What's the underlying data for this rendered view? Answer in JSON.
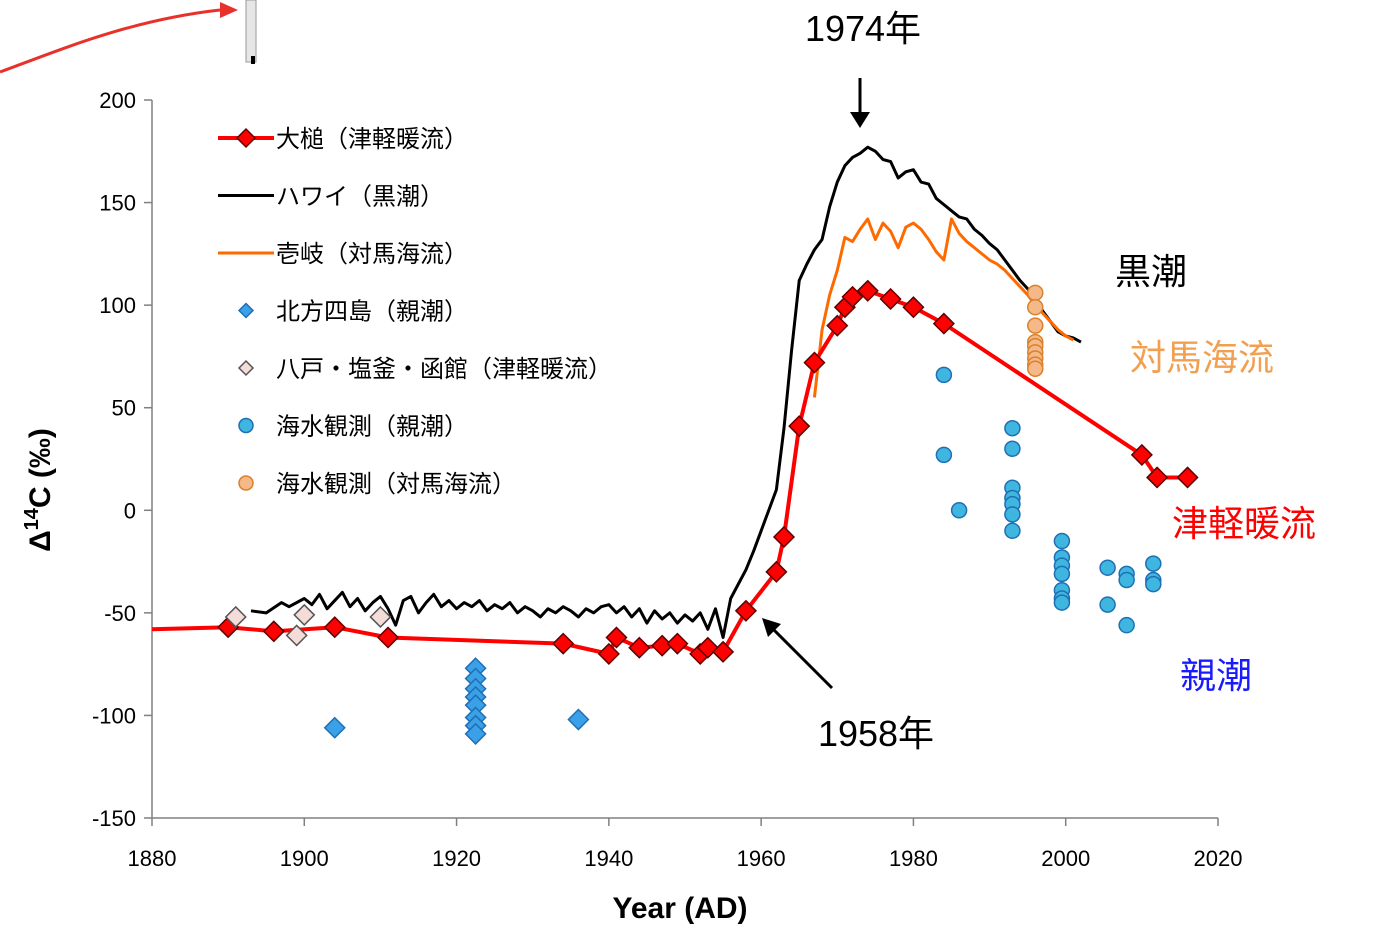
{
  "chart_data": {
    "type": "line",
    "xlabel": "Year (AD)",
    "ylabel_prefix": "Δ",
    "ylabel_sup": "14",
    "ylabel_suffix": "C (‰)",
    "xlim": [
      1880,
      2020
    ],
    "ylim": [
      -150,
      200
    ],
    "xticks": [
      1880,
      1900,
      1920,
      1940,
      1960,
      1980,
      2000,
      2020
    ],
    "yticks": [
      -150,
      -100,
      -50,
      0,
      50,
      100,
      150,
      200
    ],
    "legend_position": "upper-left",
    "series": [
      {
        "name": "大槌（津軽暖流）",
        "kind": "line-marker",
        "marker": "diamond",
        "color": "#ff0000",
        "marker_fill": "#ff0000",
        "x": [
          1880,
          1890,
          1896,
          1904,
          1911,
          1934,
          1940,
          1941,
          1944,
          1947,
          1949,
          1952,
          1953,
          1955,
          1958,
          1962,
          1963,
          1965,
          1967,
          1970,
          1971,
          1972,
          1974,
          1977,
          1980,
          1984,
          2010,
          2012,
          2016
        ],
        "y": [
          -58,
          -57,
          -59,
          -57,
          -62,
          -65,
          -70,
          -62,
          -67,
          -66,
          -65,
          -70,
          -67,
          -69,
          -49,
          -30,
          -13,
          41,
          72,
          90,
          99,
          104,
          107,
          103,
          99,
          91,
          27,
          16,
          16
        ],
        "marker_skip_first": true
      },
      {
        "name": "ハワイ（黒潮）",
        "kind": "line",
        "color": "#000000",
        "x": [
          1893,
          1895,
          1897,
          1898,
          1900,
          1901,
          1902,
          1903,
          1904,
          1905,
          1906,
          1907,
          1908,
          1909,
          1910,
          1911,
          1912,
          1913,
          1914,
          1915,
          1916,
          1917,
          1918,
          1919,
          1920,
          1921,
          1922,
          1923,
          1924,
          1925,
          1926,
          1927,
          1928,
          1929,
          1930,
          1931,
          1932,
          1933,
          1934,
          1935,
          1936,
          1937,
          1938,
          1939,
          1940,
          1941,
          1942,
          1943,
          1944,
          1945,
          1946,
          1947,
          1948,
          1949,
          1950,
          1951,
          1952,
          1953,
          1954,
          1955,
          1956,
          1957,
          1958,
          1959,
          1960,
          1961,
          1962,
          1963,
          1964,
          1965,
          1966,
          1967,
          1968,
          1969,
          1970,
          1971,
          1972,
          1973,
          1974,
          1975,
          1976,
          1977,
          1978,
          1979,
          1980,
          1981,
          1982,
          1983,
          1984,
          1985,
          1986,
          1987,
          1988,
          1989,
          1990,
          1991,
          1992,
          1993,
          1994,
          1995,
          1996,
          1997,
          1998,
          1999,
          2000,
          2001,
          2002
        ],
        "y": [
          -49,
          -50,
          -45,
          -47,
          -43,
          -46,
          -41,
          -48,
          -44,
          -40,
          -47,
          -43,
          -49,
          -45,
          -42,
          -48,
          -56,
          -44,
          -42,
          -50,
          -45,
          -41,
          -47,
          -44,
          -48,
          -45,
          -47,
          -44,
          -49,
          -46,
          -48,
          -45,
          -50,
          -47,
          -49,
          -52,
          -48,
          -50,
          -47,
          -49,
          -52,
          -48,
          -50,
          -47,
          -46,
          -50,
          -47,
          -52,
          -48,
          -55,
          -49,
          -53,
          -50,
          -55,
          -51,
          -54,
          -50,
          -58,
          -48,
          -62,
          -43,
          -36,
          -29,
          -20,
          -10,
          0,
          10,
          40,
          78,
          112,
          120,
          127,
          132,
          148,
          160,
          168,
          172,
          174,
          177,
          175,
          171,
          170,
          162,
          165,
          166,
          160,
          159,
          152,
          149,
          146,
          143,
          142,
          137,
          134,
          130,
          127,
          122,
          117,
          112,
          108,
          103,
          97,
          92,
          87,
          85,
          84,
          82
        ]
      },
      {
        "name": "壱岐（対馬海流）",
        "kind": "line",
        "color": "#ff6a00",
        "x": [
          1967,
          1968,
          1969,
          1970,
          1971,
          1972,
          1973,
          1974,
          1975,
          1976,
          1977,
          1978,
          1979,
          1980,
          1981,
          1982,
          1983,
          1984,
          1985,
          1986,
          1987,
          1988,
          1989,
          1990,
          1991,
          1992,
          1993,
          1994,
          1995,
          1996,
          1997,
          1998,
          1999,
          2000,
          2001
        ],
        "y": [
          55,
          88,
          105,
          117,
          133,
          131,
          137,
          142,
          132,
          140,
          136,
          128,
          138,
          140,
          137,
          132,
          126,
          122,
          142,
          135,
          131,
          128,
          125,
          122,
          120,
          117,
          113,
          109,
          105,
          100,
          96,
          92,
          88,
          85,
          83
        ]
      },
      {
        "name": "北方四島（親潮）",
        "kind": "scatter",
        "marker": "diamond",
        "color": "#1f6fb4",
        "marker_fill": "#3aa0e8",
        "x": [
          1904,
          1922.5,
          1922.5,
          1922.5,
          1922.5,
          1922.5,
          1922.5,
          1922.5,
          1922.5,
          1936
        ],
        "y": [
          -106,
          -77,
          -82,
          -87,
          -91,
          -95,
          -101,
          -105,
          -109,
          -102
        ]
      },
      {
        "name": "八戸・塩釜・函館（津軽暖流）",
        "kind": "scatter",
        "marker": "diamond",
        "color": "#555555",
        "marker_fill": "#f5dcd8",
        "x": [
          1891,
          1899,
          1900,
          1910
        ],
        "y": [
          -52,
          -61,
          -51,
          -52
        ]
      },
      {
        "name": "海水観測（親潮）",
        "kind": "scatter",
        "marker": "circle",
        "color": "#1f6fb4",
        "marker_fill": "#3fb6e0",
        "x": [
          1984,
          1984,
          1986,
          1993,
          1993,
          1993,
          1993,
          1993,
          1993,
          1993,
          1999.5,
          1999.5,
          1999.5,
          1999.5,
          1999.5,
          1999.5,
          1999.5,
          2005.5,
          2005.5,
          2008,
          2008,
          2008,
          2011.5,
          2011.5,
          2011.5
        ],
        "y": [
          66,
          27,
          0,
          40,
          30,
          11,
          6,
          3,
          -2,
          -10,
          -15,
          -23,
          -27,
          -31,
          -39,
          -43,
          -45,
          -28,
          -46,
          -31,
          -34,
          -56,
          -26,
          -34,
          -36
        ]
      },
      {
        "name": "海水観測（対馬海流）",
        "kind": "scatter",
        "marker": "circle",
        "color": "#d9822b",
        "marker_fill": "#f5b888",
        "x": [
          1996,
          1996,
          1996,
          1996,
          1996,
          1996,
          1996,
          1996,
          1996
        ],
        "y": [
          106,
          99,
          90,
          82,
          80,
          77,
          74,
          71,
          69
        ]
      }
    ],
    "annotations": [
      {
        "text": "1974年",
        "x": 1974,
        "y": 178
      },
      {
        "text": "1958年",
        "x": 1958,
        "y": -52
      }
    ],
    "region_labels": [
      {
        "text": "黒潮",
        "color": "#000000"
      },
      {
        "text": "対馬海流",
        "color": "#f0a050"
      },
      {
        "text": "津軽暖流",
        "color": "#ff0000"
      },
      {
        "text": "親潮",
        "color": "#1a1aff"
      }
    ]
  }
}
